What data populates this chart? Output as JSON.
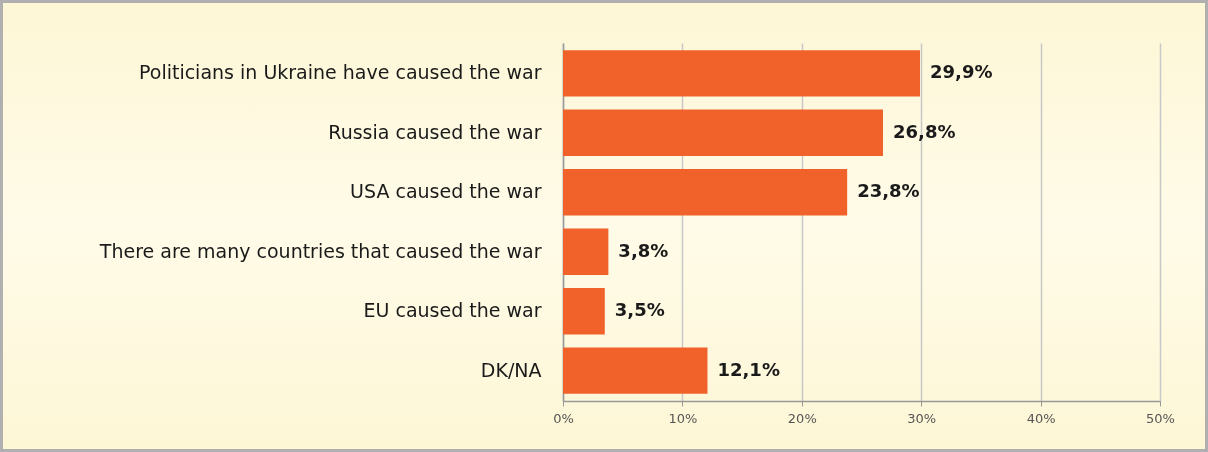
{
  "chart_data": {
    "type": "bar",
    "orientation": "horizontal",
    "categories": [
      "Politicians in Ukraine have caused the war",
      "Russia caused the war",
      "USA caused the war",
      "There are many countries that caused the war",
      "EU caused the war",
      "DK/NA"
    ],
    "values": [
      29.9,
      26.8,
      23.8,
      3.8,
      3.5,
      12.1
    ],
    "value_labels": [
      "29,9%",
      "26,8%",
      "23,8%",
      "3,8%",
      "3,5%",
      "12,1%"
    ],
    "color": "#f0622a",
    "xlim": [
      0,
      50
    ],
    "xticks": [
      {
        "value": 0,
        "label": "0%"
      },
      {
        "value": 10,
        "label": "10%"
      },
      {
        "value": 20,
        "label": "20%"
      },
      {
        "value": 30,
        "label": "30%"
      },
      {
        "value": 40,
        "label": "40%"
      },
      {
        "value": 50,
        "label": "50%"
      }
    ],
    "grid": "x"
  }
}
